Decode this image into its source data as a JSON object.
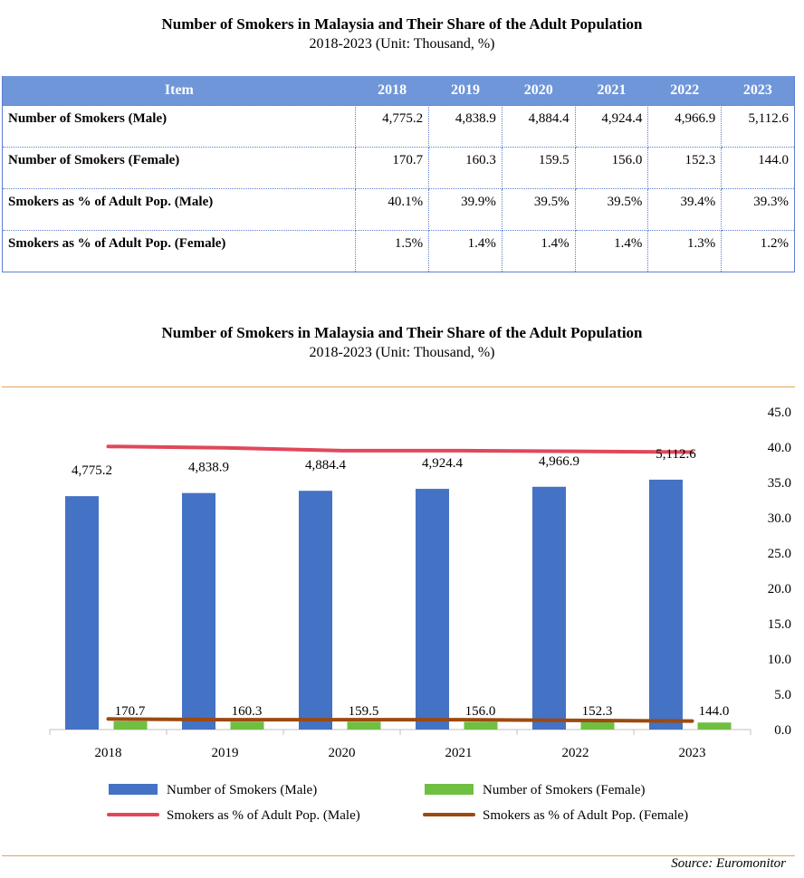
{
  "table_title": {
    "line1": "Number of Smokers in Malaysia and Their Share of the Adult Population",
    "line2": "2018-2023 (Unit: Thousand, %)"
  },
  "table": {
    "header": [
      "Item",
      "2018",
      "2019",
      "2020",
      "2021",
      "2022",
      "2023"
    ],
    "rows": [
      {
        "label": "Number of Smokers (Male)",
        "values": [
          "4,775.2",
          "4,838.9",
          "4,884.4",
          "4,924.4",
          "4,966.9",
          "5,112.6"
        ]
      },
      {
        "label": "Number of Smokers (Female)",
        "values": [
          "170.7",
          "160.3",
          "159.5",
          "156.0",
          "152.3",
          "144.0"
        ]
      },
      {
        "label": "Smokers as % of Adult Pop. (Male)",
        "values": [
          "40.1%",
          "39.9%",
          "39.5%",
          "39.5%",
          "39.4%",
          "39.3%"
        ]
      },
      {
        "label": "Smokers as % of Adult Pop. (Female)",
        "values": [
          "1.5%",
          "1.4%",
          "1.4%",
          "1.4%",
          "1.3%",
          "1.2%"
        ]
      }
    ]
  },
  "chart_title": {
    "line1": "Number of Smokers in Malaysia and Their Share of the Adult Population",
    "line2": "2018-2023 (Unit: Thousand, %)"
  },
  "chart_data": {
    "type": "bar",
    "title": "Number of Smokers in Malaysia and Their Share of the Adult Population",
    "subtitle": "2018-2023 (Unit: Thousand, %)",
    "categories": [
      "2018",
      "2019",
      "2020",
      "2021",
      "2022",
      "2023"
    ],
    "series": [
      {
        "name": "Number of Smokers (Male)",
        "kind": "bar",
        "color": "#4472c4",
        "values": [
          4775.2,
          4838.9,
          4884.4,
          4924.4,
          4966.9,
          5112.6
        ],
        "labels": [
          "4,775.2",
          "4,838.9",
          "4,884.4",
          "4,924.4",
          "4,966.9",
          "5,112.6"
        ]
      },
      {
        "name": "Number of Smokers (Female)",
        "kind": "bar",
        "color": "#70bf41",
        "values": [
          170.7,
          160.3,
          159.5,
          156.0,
          152.3,
          144.0
        ],
        "labels": [
          "170.7",
          "160.3",
          "159.5",
          "156.0",
          "152.3",
          "144.0"
        ]
      },
      {
        "name": "Smokers as % of Adult Pop. (Male)",
        "kind": "line",
        "axis": "right",
        "color": "#e0485a",
        "values": [
          40.1,
          39.9,
          39.5,
          39.5,
          39.4,
          39.3
        ]
      },
      {
        "name": "Smokers as % of Adult Pop. (Female)",
        "kind": "line",
        "axis": "right",
        "color": "#9c4a10",
        "values": [
          1.5,
          1.4,
          1.4,
          1.4,
          1.3,
          1.2
        ]
      }
    ],
    "left_axis_range": [
      0,
      6500
    ],
    "right_axis": {
      "range": [
        0,
        45
      ],
      "ticks": [
        "0.0",
        "5.0",
        "10.0",
        "15.0",
        "20.0",
        "25.0",
        "30.0",
        "35.0",
        "40.0",
        "45.0"
      ]
    },
    "legend_position": "bottom"
  },
  "source": "Source:  Euromonitor"
}
